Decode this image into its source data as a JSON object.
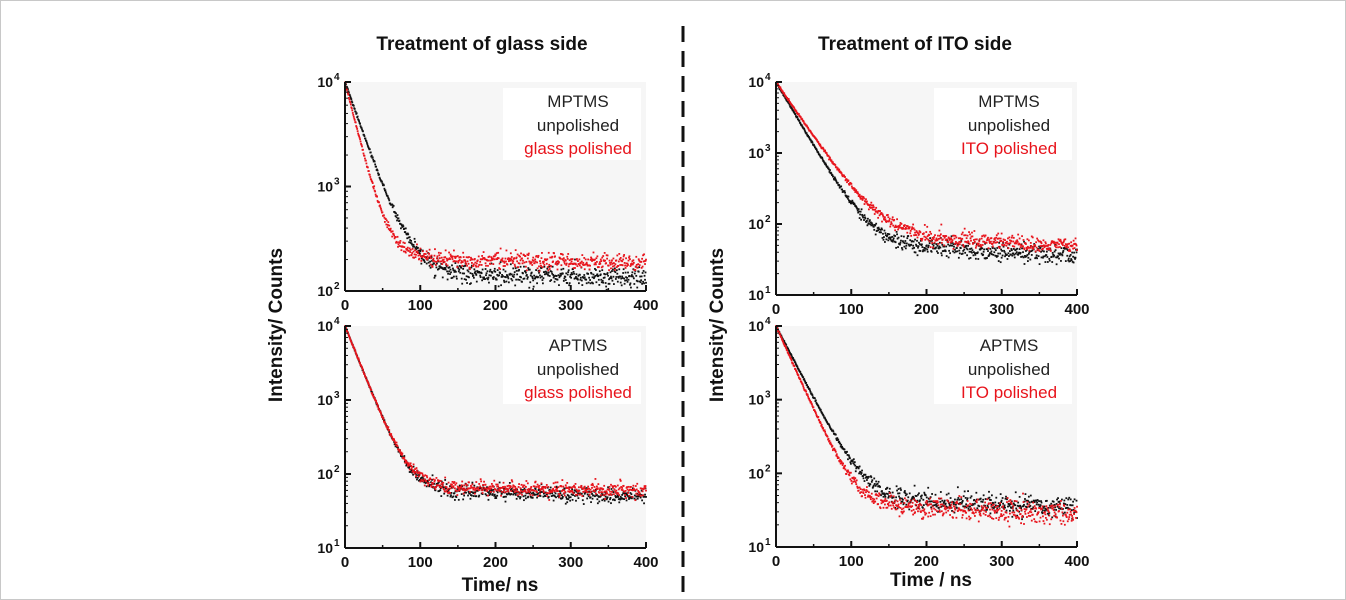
{
  "figure": {
    "left_title": "Treatment of glass side",
    "right_title": "Treatment of ITO side",
    "left_ylabel": "Intensity/ Counts",
    "right_ylabel": "Intensity/ Counts",
    "left_xlabel": "Time/ ns",
    "right_xlabel": "Time / ns",
    "series_colors": {
      "unpolished": "#111111",
      "polished": "#e8141c"
    }
  },
  "chart_data": [
    {
      "type": "scatter",
      "panel": "left-top",
      "y_scale": "log",
      "xlim": [
        0,
        400
      ],
      "ylim": [
        100,
        10000
      ],
      "x_ticks": [
        "0",
        "100",
        "200",
        "300",
        "400"
      ],
      "y_ticks": [
        {
          "base": "10",
          "exp": "2"
        },
        {
          "base": "10",
          "exp": "3"
        },
        {
          "base": "10",
          "exp": "4"
        }
      ],
      "legend": {
        "title": "MPTMS",
        "entries": [
          "unpolished",
          "glass polished"
        ],
        "position": "top-right"
      },
      "series": [
        {
          "name": "unpolished",
          "color": "#111111",
          "peak": 10000,
          "tau": 21,
          "tail": 145,
          "tail_end": 135,
          "noise": 0.09
        },
        {
          "name": "glass polished",
          "color": "#e8141c",
          "peak": 10000,
          "tau": 15,
          "tail": 210,
          "tail_end": 185,
          "noise": 0.07
        }
      ]
    },
    {
      "type": "scatter",
      "panel": "left-bottom",
      "y_scale": "log",
      "xlim": [
        0,
        400
      ],
      "ylim": [
        10,
        10000
      ],
      "x_ticks": [
        "0",
        "100",
        "200",
        "300",
        "400"
      ],
      "y_ticks": [
        {
          "base": "10",
          "exp": "1"
        },
        {
          "base": "10",
          "exp": "2"
        },
        {
          "base": "10",
          "exp": "3"
        },
        {
          "base": "10",
          "exp": "4"
        }
      ],
      "legend": {
        "title": "APTMS",
        "entries": [
          "unpolished",
          "glass polished"
        ],
        "position": "top-right"
      },
      "series": [
        {
          "name": "unpolished",
          "color": "#111111",
          "peak": 10000,
          "tau": 17,
          "tail": 62,
          "tail_end": 50,
          "noise": 0.1
        },
        {
          "name": "glass polished",
          "color": "#e8141c",
          "peak": 10000,
          "tau": 17,
          "tail": 68,
          "tail_end": 60,
          "noise": 0.1
        }
      ]
    },
    {
      "type": "scatter",
      "panel": "right-top",
      "y_scale": "log",
      "xlim": [
        0,
        400
      ],
      "ylim": [
        10,
        10000
      ],
      "x_ticks": [
        "0",
        "100",
        "200",
        "300",
        "400"
      ],
      "y_ticks": [
        {
          "base": "10",
          "exp": "1"
        },
        {
          "base": "10",
          "exp": "2"
        },
        {
          "base": "10",
          "exp": "3"
        },
        {
          "base": "10",
          "exp": "4"
        }
      ],
      "legend": {
        "title": "MPTMS",
        "entries": [
          "unpolished",
          "ITO polished"
        ],
        "position": "top-right"
      },
      "series": [
        {
          "name": "unpolished",
          "color": "#111111",
          "peak": 10000,
          "tau": 24,
          "tail": 55,
          "tail_end": 35,
          "noise": 0.14
        },
        {
          "name": "ITO polished",
          "color": "#e8141c",
          "peak": 10000,
          "tau": 28,
          "tail": 75,
          "tail_end": 48,
          "noise": 0.12
        }
      ]
    },
    {
      "type": "scatter",
      "panel": "right-bottom",
      "y_scale": "log",
      "xlim": [
        0,
        400
      ],
      "ylim": [
        10,
        10000
      ],
      "x_ticks": [
        "0",
        "100",
        "200",
        "300",
        "400"
      ],
      "y_ticks": [
        {
          "base": "10",
          "exp": "1"
        },
        {
          "base": "10",
          "exp": "2"
        },
        {
          "base": "10",
          "exp": "3"
        },
        {
          "base": "10",
          "exp": "4"
        }
      ],
      "legend": {
        "title": "APTMS",
        "entries": [
          "unpolished",
          "ITO polished"
        ],
        "position": "top-right"
      },
      "series": [
        {
          "name": "unpolished",
          "color": "#111111",
          "peak": 10000,
          "tau": 22,
          "tail": 48,
          "tail_end": 35,
          "noise": 0.15
        },
        {
          "name": "ITO polished",
          "color": "#e8141c",
          "peak": 10000,
          "tau": 19,
          "tail": 38,
          "tail_end": 28,
          "noise": 0.15
        }
      ]
    }
  ]
}
